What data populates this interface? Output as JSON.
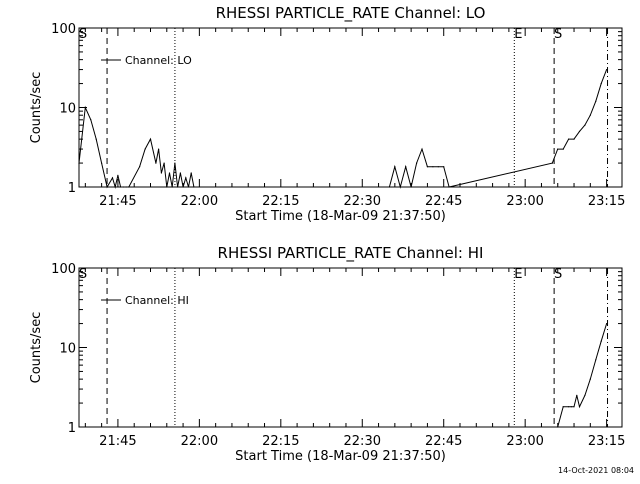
{
  "footer": {
    "timestamp": "14-Oct-2021 08:04"
  },
  "chart_data": [
    {
      "type": "line",
      "title": "RHESSI PARTICLE_RATE Channel: LO",
      "xlabel": "Start Time (18-Mar-09 21:37:50)",
      "ylabel": "Counts/sec",
      "yscale": "log",
      "xlim": [
        "21:37:50",
        "23:17:50"
      ],
      "ylim": [
        1,
        100
      ],
      "x_ticks": [
        "21:45",
        "22:00",
        "22:15",
        "22:30",
        "22:45",
        "23:00",
        "23:15"
      ],
      "y_ticks": [
        "1",
        "10",
        "100"
      ],
      "legend": {
        "position": "top-left",
        "entries": [
          "Channel: LO"
        ]
      },
      "series": [
        {
          "name": "Channel: LO",
          "x": [
            "21:37:50",
            "21:39:00",
            "21:40:00",
            "21:41:00",
            "21:42:00",
            "21:43:00",
            "21:44:00",
            "21:44:30",
            "21:45:00",
            "21:45:30",
            "21:46:00",
            "21:46:30",
            "21:47:00",
            "21:49:00",
            "21:50:00",
            "21:51:00",
            "21:52:00",
            "21:52:30",
            "21:53:00",
            "21:53:30",
            "21:54:00",
            "21:54:30",
            "21:55:00",
            "21:55:30",
            "21:56:00",
            "21:56:30",
            "21:57:00",
            "21:57:30",
            "21:58:00",
            "21:58:30",
            "21:59:00",
            "22:35:00",
            "22:36:00",
            "22:37:00",
            "22:38:00",
            "22:39:00",
            "22:40:00",
            "22:41:00",
            "22:42:00",
            "22:43:00",
            "22:44:00",
            "22:45:00",
            "22:46:00",
            "23:05:00",
            "23:06:00",
            "23:07:00",
            "23:08:00",
            "23:09:00",
            "23:10:00",
            "23:11:00",
            "23:12:00",
            "23:13:00",
            "23:14:00",
            "23:15:00"
          ],
          "y": [
            2,
            10,
            7,
            4,
            2,
            1,
            1.3,
            1,
            1.4,
            1,
            1,
            1,
            1,
            1.8,
            3,
            4,
            2,
            3,
            1.5,
            2,
            1,
            1.5,
            1,
            2,
            1,
            1.5,
            1,
            1.3,
            1,
            1.5,
            1,
            1,
            1.8,
            1,
            1.8,
            1,
            2,
            3,
            1.8,
            1.8,
            1.8,
            1.8,
            1,
            2,
            3,
            3,
            4,
            4,
            5,
            6,
            8,
            12,
            20,
            30
          ]
        }
      ],
      "markers": [
        {
          "x": "21:37:50",
          "label": "S",
          "style": "dashed"
        },
        {
          "x": "21:43:00",
          "label": "",
          "style": "dashed"
        },
        {
          "x": "21:55:30",
          "label": "",
          "style": "dotted"
        },
        {
          "x": "22:58:00",
          "label": "E",
          "style": "dotted"
        },
        {
          "x": "23:05:20",
          "label": "S",
          "style": "dashed"
        },
        {
          "x": "23:15:10",
          "label": "",
          "style": "dashdot"
        }
      ]
    },
    {
      "type": "line",
      "title": "RHESSI PARTICLE_RATE Channel: HI",
      "xlabel": "Start Time (18-Mar-09 21:37:50)",
      "ylabel": "Counts/sec",
      "yscale": "log",
      "xlim": [
        "21:37:50",
        "23:17:50"
      ],
      "ylim": [
        1,
        100
      ],
      "x_ticks": [
        "21:45",
        "22:00",
        "22:15",
        "22:30",
        "22:45",
        "23:00",
        "23:15"
      ],
      "y_ticks": [
        "1",
        "10",
        "100"
      ],
      "legend": {
        "position": "top-left",
        "entries": [
          "Channel: HI"
        ]
      },
      "series": [
        {
          "name": "Channel: HI",
          "x": [
            "23:06:00",
            "23:07:00",
            "23:08:00",
            "23:08:30",
            "23:09:00",
            "23:09:30",
            "23:10:00",
            "23:11:00",
            "23:12:00",
            "23:13:00",
            "23:14:00",
            "23:15:00"
          ],
          "y": [
            1,
            1.8,
            1.8,
            1.8,
            1.8,
            2.5,
            1.8,
            2.5,
            4,
            7,
            12,
            20
          ]
        }
      ],
      "markers": [
        {
          "x": "21:37:50",
          "label": "S",
          "style": "dashed"
        },
        {
          "x": "21:43:00",
          "label": "",
          "style": "dashed"
        },
        {
          "x": "21:55:30",
          "label": "",
          "style": "dotted"
        },
        {
          "x": "22:58:00",
          "label": "E",
          "style": "dotted"
        },
        {
          "x": "23:05:20",
          "label": "S",
          "style": "dashed"
        },
        {
          "x": "23:15:10",
          "label": "",
          "style": "dashdot"
        }
      ]
    }
  ]
}
